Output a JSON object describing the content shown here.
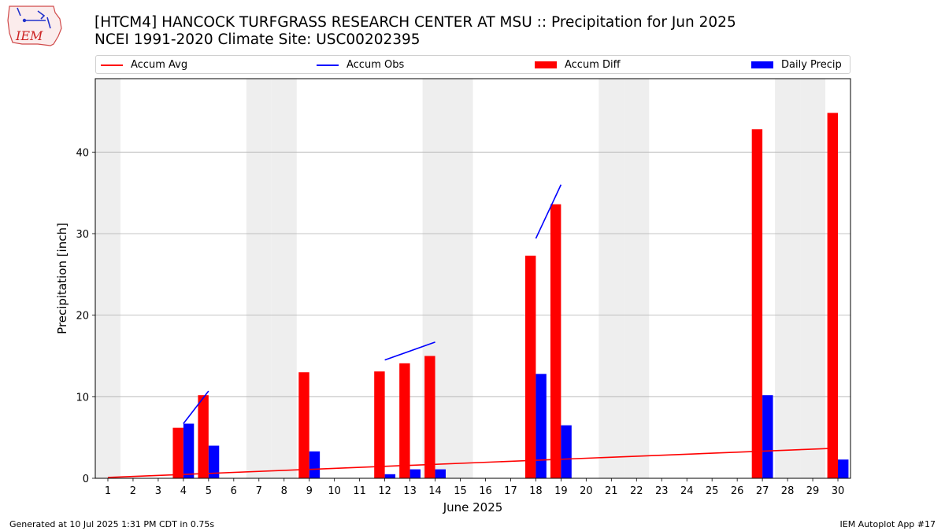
{
  "header": {
    "title_line1": "[HTCM4] HANCOCK TURFGRASS RESEARCH CENTER AT MSU :: Precipitation for Jun 2025",
    "title_line2": "NCEI 1991-2020 Climate Site: USC00202395",
    "logo_text": "IEM"
  },
  "legend": {
    "items": [
      {
        "label": "Accum Avg",
        "kind": "line",
        "color": "#ff0000"
      },
      {
        "label": "Accum Obs",
        "kind": "line",
        "color": "#0000ff"
      },
      {
        "label": "Accum Diff",
        "kind": "patch",
        "color": "#ff0000"
      },
      {
        "label": "Daily Precip",
        "kind": "patch",
        "color": "#0000ff"
      }
    ]
  },
  "footer": {
    "left": "Generated at 10 Jul 2025 1:31 PM CDT in 0.75s",
    "right": "IEM Autoplot App #17"
  },
  "chart_data": {
    "type": "bar",
    "xlabel": "June 2025",
    "ylabel": "Precipitation [inch]",
    "xlim": [
      0.5,
      30.5
    ],
    "ylim": [
      0,
      49
    ],
    "yticks": [
      0,
      10,
      20,
      30,
      40
    ],
    "x": [
      1,
      2,
      3,
      4,
      5,
      6,
      7,
      8,
      9,
      10,
      11,
      12,
      13,
      14,
      15,
      16,
      17,
      18,
      19,
      20,
      21,
      22,
      23,
      24,
      25,
      26,
      27,
      28,
      29,
      30
    ],
    "weekend_days": [
      1,
      7,
      8,
      14,
      15,
      21,
      22,
      28,
      29
    ],
    "grid": "y",
    "legend_position": "top",
    "series": [
      {
        "name": "Accum Diff",
        "kind": "bar",
        "color": "#ff0000",
        "values": [
          0,
          0,
          0,
          6.2,
          10.2,
          0,
          0,
          0,
          13.0,
          0,
          0,
          13.1,
          14.1,
          15.0,
          0,
          0,
          0,
          27.3,
          33.6,
          0,
          0,
          0,
          0,
          0,
          0,
          0,
          42.8,
          0,
          0,
          44.8
        ]
      },
      {
        "name": "Daily Precip",
        "kind": "bar",
        "color": "#0000ff",
        "values": [
          0,
          0,
          0,
          6.7,
          4.0,
          0,
          0,
          0,
          3.3,
          0,
          0,
          0.5,
          1.1,
          1.1,
          0,
          0,
          0,
          12.8,
          6.5,
          0,
          0,
          0,
          0,
          0,
          0,
          0,
          10.2,
          0,
          0,
          2.3
        ]
      },
      {
        "name": "Accum Avg",
        "kind": "line",
        "color": "#ff0000",
        "points": [
          [
            1,
            0.1
          ],
          [
            30,
            3.7
          ]
        ]
      },
      {
        "name": "Accum Obs",
        "kind": "line",
        "color": "#0000ff",
        "segments": [
          [
            [
              4,
              6.7
            ],
            [
              5,
              10.7
            ]
          ],
          [
            [
              12,
              14.5
            ],
            [
              14,
              16.7
            ]
          ],
          [
            [
              18,
              29.4
            ],
            [
              19,
              36.0
            ]
          ]
        ]
      }
    ]
  }
}
